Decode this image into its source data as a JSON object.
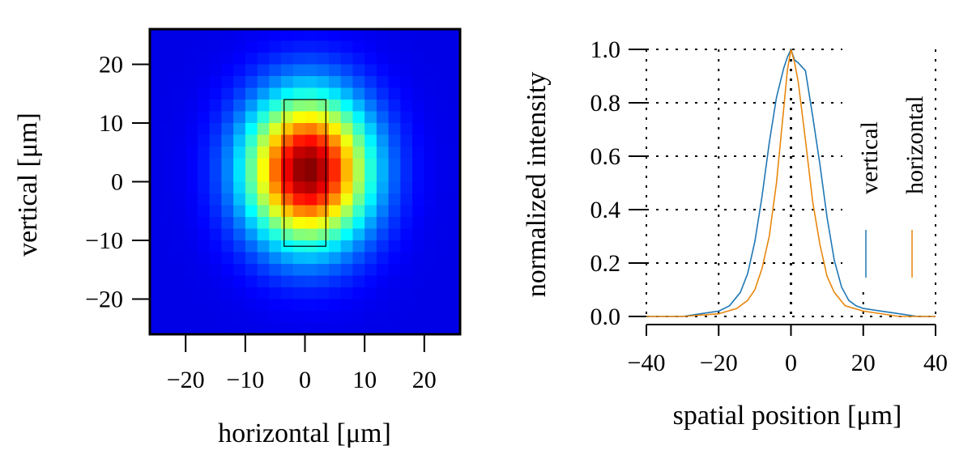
{
  "chart_data": [
    {
      "type": "heatmap",
      "xlabel": "horizontal [μm]",
      "ylabel": "vertical [μm]",
      "xlim": [
        -26,
        26
      ],
      "ylim": [
        -26,
        26
      ],
      "xticks": [
        -20,
        -10,
        0,
        10,
        20
      ],
      "yticks": [
        -20,
        -10,
        0,
        10,
        20
      ],
      "xtick_labels": [
        "−20",
        "−10",
        "0",
        "10",
        "20"
      ],
      "ytick_labels": [
        "−20",
        "−10",
        "0",
        "10",
        "20"
      ],
      "colormap": "jet",
      "grid_cells": 26,
      "spot": {
        "center_x": 0.5,
        "center_y": 2,
        "sigma_x": 7.2,
        "sigma_y": 8.8,
        "background": 0.1
      },
      "selection_box": {
        "x_min": -3.5,
        "x_max": 3.5,
        "y_min": -11,
        "y_max": 14
      }
    },
    {
      "type": "line",
      "xlabel": "spatial position [μm]",
      "ylabel": "normalized intensity",
      "xlim": [
        -40,
        40
      ],
      "ylim": [
        0,
        1
      ],
      "xticks": [
        -40,
        -20,
        0,
        20,
        40
      ],
      "yticks": [
        0,
        0.2,
        0.4,
        0.6,
        0.8,
        1.0
      ],
      "xtick_labels": [
        "−40",
        "−20",
        "0",
        "20",
        "40"
      ],
      "ytick_labels": [
        "0.0",
        "0.2",
        "0.4",
        "0.6",
        "0.8",
        "1.0"
      ],
      "grid": true,
      "legend_position": "right",
      "series": [
        {
          "name": "vertical",
          "color": "#1f77b4",
          "x": [
            -40,
            -30,
            -25,
            -20,
            -17,
            -14,
            -12,
            -10,
            -8,
            -6,
            -4,
            -2,
            -1,
            0,
            1,
            2,
            4,
            6,
            8,
            10,
            12,
            14,
            16,
            18,
            20,
            25,
            30,
            35,
            40
          ],
          "y": [
            0.0,
            0.0,
            0.01,
            0.02,
            0.04,
            0.09,
            0.16,
            0.28,
            0.45,
            0.65,
            0.82,
            0.93,
            0.97,
            1.0,
            0.96,
            0.95,
            0.92,
            0.75,
            0.57,
            0.37,
            0.21,
            0.11,
            0.06,
            0.04,
            0.03,
            0.02,
            0.01,
            0.0,
            0.0
          ]
        },
        {
          "name": "horizontal",
          "color": "#e8870e",
          "x": [
            -40,
            -30,
            -20,
            -15,
            -12,
            -10,
            -8,
            -6,
            -4,
            -2,
            -1,
            0,
            1,
            2,
            4,
            6,
            8,
            10,
            12,
            15,
            20,
            30,
            40
          ],
          "y": [
            0.0,
            0.0,
            0.01,
            0.03,
            0.06,
            0.1,
            0.18,
            0.3,
            0.5,
            0.78,
            0.92,
            1.0,
            0.95,
            0.88,
            0.66,
            0.43,
            0.27,
            0.15,
            0.09,
            0.04,
            0.02,
            0.0,
            0.0
          ]
        }
      ]
    }
  ]
}
